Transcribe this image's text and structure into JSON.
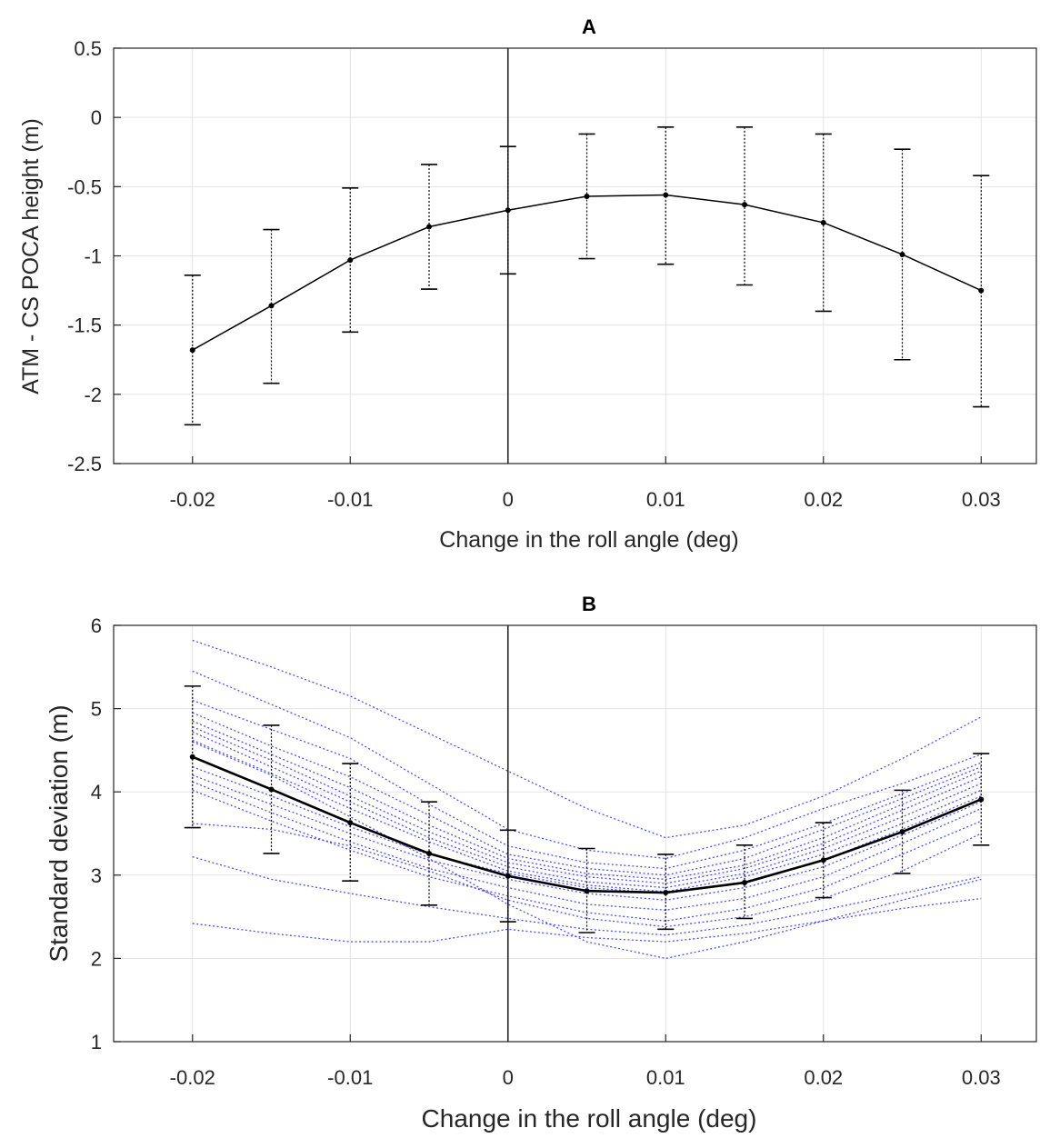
{
  "chart_data": [
    {
      "type": "line",
      "title": "A",
      "xlabel": "Change in the roll angle (deg)",
      "ylabel": "ATM - CS POCA height (m)",
      "xlim": [
        -0.025,
        0.0335
      ],
      "ylim": [
        -2.5,
        0.5
      ],
      "xticks": [
        -0.02,
        -0.01,
        0,
        0.01,
        0.02,
        0.03
      ],
      "xtick_labels": [
        "-0.02",
        "-0.01",
        "0",
        "0.01",
        "0.02",
        "0.03"
      ],
      "yticks": [
        -2.5,
        -2,
        -1.5,
        -1,
        -0.5,
        0,
        0.5
      ],
      "ytick_labels": [
        "-2.5",
        "-2",
        "-1.5",
        "-1",
        "-0.5",
        "0",
        "0.5"
      ],
      "grid": true,
      "x": [
        -0.02,
        -0.015,
        -0.01,
        -0.005,
        0,
        0.005,
        0.01,
        0.015,
        0.02,
        0.025,
        0.03
      ],
      "series": [
        {
          "values": [
            -1.68,
            -1.36,
            -1.03,
            -0.79,
            -0.67,
            -0.57,
            -0.56,
            -0.63,
            -0.76,
            -0.99,
            -1.25
          ],
          "error_upper": [
            -1.14,
            -0.81,
            -0.51,
            -0.34,
            -0.21,
            -0.12,
            -0.07,
            -0.07,
            -0.12,
            -0.23,
            -0.42
          ],
          "error_lower": [
            -2.22,
            -1.92,
            -1.55,
            -1.24,
            -1.13,
            -1.02,
            -1.06,
            -1.21,
            -1.4,
            -1.75,
            -2.09
          ]
        }
      ],
      "reference_line_x": 0
    },
    {
      "type": "line",
      "title": "B",
      "xlabel": "Change in the roll angle (deg)",
      "ylabel": "Standard deviation (m)",
      "xlim": [
        -0.025,
        0.0335
      ],
      "ylim": [
        1,
        6
      ],
      "xticks": [
        -0.02,
        -0.01,
        0,
        0.01,
        0.02,
        0.03
      ],
      "xtick_labels": [
        "-0.02",
        "-0.01",
        "0",
        "0.01",
        "0.02",
        "0.03"
      ],
      "yticks": [
        1,
        2,
        3,
        4,
        5,
        6
      ],
      "ytick_labels": [
        "1",
        "2",
        "3",
        "4",
        "5",
        "6"
      ],
      "grid": true,
      "x": [
        -0.02,
        -0.015,
        -0.01,
        -0.005,
        0,
        0.005,
        0.01,
        0.015,
        0.02,
        0.025,
        0.03
      ],
      "series": [
        {
          "values": [
            4.42,
            4.03,
            3.63,
            3.26,
            2.99,
            2.81,
            2.79,
            2.91,
            3.18,
            3.52,
            3.91
          ],
          "error_upper": [
            5.27,
            4.8,
            4.34,
            3.88,
            3.54,
            3.32,
            3.25,
            3.36,
            3.63,
            4.02,
            4.46
          ],
          "error_lower": [
            3.57,
            3.26,
            2.93,
            2.64,
            2.44,
            2.31,
            2.35,
            2.48,
            2.73,
            3.02,
            3.36
          ],
          "color": "#000000"
        }
      ],
      "individual_series_color": "#3d3dff",
      "individual_series": [
        [
          5.82,
          5.5,
          5.15,
          4.7,
          4.25,
          3.8,
          3.45,
          3.6,
          3.95,
          4.4,
          4.9
        ],
        [
          5.45,
          5.05,
          4.65,
          4.1,
          3.55,
          3.3,
          3.2,
          3.45,
          3.8,
          4.1,
          4.45
        ],
        [
          5.1,
          4.75,
          4.4,
          3.85,
          3.35,
          3.15,
          3.08,
          3.3,
          3.62,
          3.98,
          4.35
        ],
        [
          4.95,
          4.55,
          4.18,
          3.72,
          3.25,
          3.08,
          3.0,
          3.2,
          3.55,
          3.92,
          4.3
        ],
        [
          4.85,
          4.45,
          4.05,
          3.6,
          3.2,
          3.02,
          2.95,
          3.12,
          3.45,
          3.85,
          4.25
        ],
        [
          4.78,
          4.38,
          3.95,
          3.52,
          3.15,
          2.98,
          2.9,
          3.08,
          3.38,
          3.78,
          4.18
        ],
        [
          4.72,
          4.3,
          3.88,
          3.45,
          3.1,
          2.92,
          2.85,
          3.02,
          3.32,
          3.7,
          4.1
        ],
        [
          4.62,
          4.22,
          3.8,
          3.4,
          3.05,
          2.88,
          2.8,
          2.98,
          3.25,
          3.62,
          4.02
        ],
        [
          4.3,
          3.95,
          3.58,
          3.25,
          3.02,
          2.85,
          2.78,
          2.92,
          3.18,
          3.55,
          3.95
        ],
        [
          4.2,
          3.85,
          3.5,
          3.18,
          2.95,
          2.78,
          2.7,
          2.85,
          3.1,
          3.48,
          3.88
        ],
        [
          4.12,
          3.75,
          3.4,
          3.08,
          2.85,
          2.65,
          2.58,
          2.72,
          2.98,
          3.38,
          3.8
        ],
        [
          4.02,
          3.65,
          3.3,
          2.98,
          2.75,
          2.55,
          2.45,
          2.6,
          2.85,
          3.25,
          3.65
        ],
        [
          3.62,
          3.55,
          3.35,
          3.05,
          2.7,
          2.48,
          2.38,
          2.5,
          2.72,
          3.05,
          3.5
        ],
        [
          3.22,
          2.95,
          2.78,
          2.62,
          2.48,
          2.35,
          2.28,
          2.4,
          2.58,
          2.78,
          2.98
        ],
        [
          2.42,
          2.3,
          2.2,
          2.2,
          2.35,
          2.25,
          2.2,
          2.3,
          2.45,
          2.6,
          2.72
        ],
        [
          4.6,
          4.2,
          3.7,
          3.2,
          2.65,
          2.2,
          2.0,
          2.2,
          2.45,
          2.7,
          2.95
        ]
      ],
      "reference_line_x": 0
    }
  ]
}
